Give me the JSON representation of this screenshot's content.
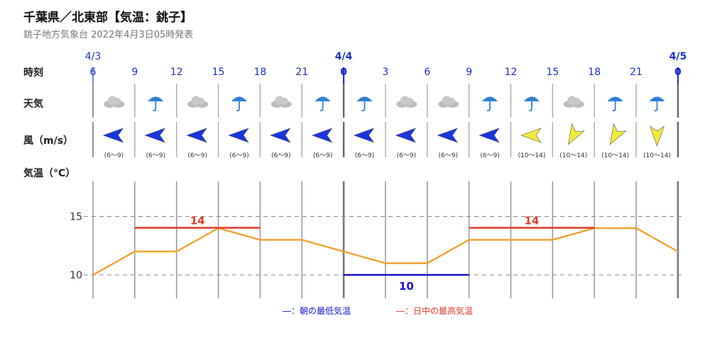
{
  "header": {
    "title": "千葉県／北東部【気温：銚子】",
    "subtitle": "銚子地方気象台 2022年4月3日05時発表"
  },
  "row_labels": {
    "time": "時刻",
    "weather": "天気",
    "wind": "風（m/s）",
    "temp": "気温（°C）"
  },
  "date_labels": [
    {
      "index": 0,
      "text": "4/3",
      "major": false
    },
    {
      "index": 6,
      "text": "4/4",
      "major": true
    },
    {
      "index": 14,
      "text": "4/5",
      "major": true
    }
  ],
  "hours": [
    "6",
    "9",
    "12",
    "15",
    "18",
    "21",
    "0",
    "3",
    "6",
    "9",
    "12",
    "15",
    "18",
    "21",
    "0"
  ],
  "major_hours": [
    6,
    14
  ],
  "weather": [
    "cloudy",
    "umbrella",
    "cloudy",
    "umbrella",
    "cloudy",
    "umbrella",
    "umbrella",
    "cloudy",
    "cloudy",
    "umbrella",
    "umbrella",
    "cloudy",
    "umbrella",
    "umbrella"
  ],
  "wind": [
    {
      "dir": "W",
      "speed": "(6〜9)",
      "color": "#1a35e0"
    },
    {
      "dir": "W",
      "speed": "(6〜9)",
      "color": "#1a35e0"
    },
    {
      "dir": "W",
      "speed": "(6〜9)",
      "color": "#1a35e0"
    },
    {
      "dir": "W",
      "speed": "(6〜9)",
      "color": "#1a35e0"
    },
    {
      "dir": "W",
      "speed": "(6〜9)",
      "color": "#1a35e0"
    },
    {
      "dir": "W",
      "speed": "(6〜9)",
      "color": "#1a35e0"
    },
    {
      "dir": "W",
      "speed": "(6〜9)",
      "color": "#1a35e0"
    },
    {
      "dir": "W",
      "speed": "(6〜9)",
      "color": "#1a35e0"
    },
    {
      "dir": "W",
      "speed": "(6〜9)",
      "color": "#1a35e0"
    },
    {
      "dir": "W",
      "speed": "(6〜9)",
      "color": "#1a35e0"
    },
    {
      "dir": "W",
      "speed": "(10〜14)",
      "color": "#f2ea38"
    },
    {
      "dir": "SW",
      "speed": "(10〜14)",
      "color": "#f2ea38"
    },
    {
      "dir": "SW",
      "speed": "(10〜14)",
      "color": "#f2ea38"
    },
    {
      "dir": "S",
      "speed": "(10〜14)",
      "color": "#f2ea38"
    }
  ],
  "chart_data": {
    "type": "line",
    "x": [
      "4/3 6",
      "9",
      "12",
      "15",
      "18",
      "21",
      "4/4 0",
      "3",
      "6",
      "9",
      "12",
      "15",
      "18",
      "21",
      "4/5 0"
    ],
    "series": [
      {
        "values": [
          10,
          12,
          12,
          14,
          13,
          13,
          12,
          11,
          11,
          13,
          13,
          13,
          14,
          14,
          12
        ]
      }
    ],
    "ylim": [
      8,
      18
    ],
    "yticks": [
      10,
      15
    ],
    "grid": true,
    "max_temp": [
      {
        "from": 1,
        "to": 4,
        "value": 14,
        "label": "14"
      },
      {
        "from": 9,
        "to": 12,
        "value": 14,
        "label": "14"
      }
    ],
    "min_temp": [
      {
        "from": 6,
        "to": 9,
        "value": 10,
        "label": "10"
      }
    ],
    "colors": {
      "line": "#f0a32e",
      "max": "#e03a2a",
      "min": "#1414d0"
    },
    "legend": [
      {
        "text": "―：朝の最低気温",
        "color": "#1414d0"
      },
      {
        "text": "―：日中の最高気温",
        "color": "#e03a2a"
      }
    ]
  }
}
